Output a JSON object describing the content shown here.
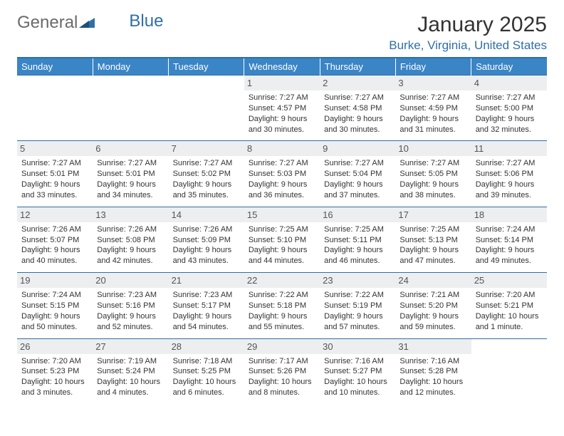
{
  "brand": {
    "part1": "General",
    "part2": "Blue"
  },
  "title": "January 2025",
  "location": "Burke, Virginia, United States",
  "colors": {
    "header_bg": "#3a85c6",
    "accent": "#2f6fa8",
    "daynum_bg": "#eceeef",
    "text": "#333333",
    "logo_gray": "#6a6a6a"
  },
  "weekdays": [
    "Sunday",
    "Monday",
    "Tuesday",
    "Wednesday",
    "Thursday",
    "Friday",
    "Saturday"
  ],
  "weeks": [
    [
      null,
      null,
      null,
      {
        "n": "1",
        "sr": "Sunrise: 7:27 AM",
        "ss": "Sunset: 4:57 PM",
        "d1": "Daylight: 9 hours",
        "d2": "and 30 minutes."
      },
      {
        "n": "2",
        "sr": "Sunrise: 7:27 AM",
        "ss": "Sunset: 4:58 PM",
        "d1": "Daylight: 9 hours",
        "d2": "and 30 minutes."
      },
      {
        "n": "3",
        "sr": "Sunrise: 7:27 AM",
        "ss": "Sunset: 4:59 PM",
        "d1": "Daylight: 9 hours",
        "d2": "and 31 minutes."
      },
      {
        "n": "4",
        "sr": "Sunrise: 7:27 AM",
        "ss": "Sunset: 5:00 PM",
        "d1": "Daylight: 9 hours",
        "d2": "and 32 minutes."
      }
    ],
    [
      {
        "n": "5",
        "sr": "Sunrise: 7:27 AM",
        "ss": "Sunset: 5:01 PM",
        "d1": "Daylight: 9 hours",
        "d2": "and 33 minutes."
      },
      {
        "n": "6",
        "sr": "Sunrise: 7:27 AM",
        "ss": "Sunset: 5:01 PM",
        "d1": "Daylight: 9 hours",
        "d2": "and 34 minutes."
      },
      {
        "n": "7",
        "sr": "Sunrise: 7:27 AM",
        "ss": "Sunset: 5:02 PM",
        "d1": "Daylight: 9 hours",
        "d2": "and 35 minutes."
      },
      {
        "n": "8",
        "sr": "Sunrise: 7:27 AM",
        "ss": "Sunset: 5:03 PM",
        "d1": "Daylight: 9 hours",
        "d2": "and 36 minutes."
      },
      {
        "n": "9",
        "sr": "Sunrise: 7:27 AM",
        "ss": "Sunset: 5:04 PM",
        "d1": "Daylight: 9 hours",
        "d2": "and 37 minutes."
      },
      {
        "n": "10",
        "sr": "Sunrise: 7:27 AM",
        "ss": "Sunset: 5:05 PM",
        "d1": "Daylight: 9 hours",
        "d2": "and 38 minutes."
      },
      {
        "n": "11",
        "sr": "Sunrise: 7:27 AM",
        "ss": "Sunset: 5:06 PM",
        "d1": "Daylight: 9 hours",
        "d2": "and 39 minutes."
      }
    ],
    [
      {
        "n": "12",
        "sr": "Sunrise: 7:26 AM",
        "ss": "Sunset: 5:07 PM",
        "d1": "Daylight: 9 hours",
        "d2": "and 40 minutes."
      },
      {
        "n": "13",
        "sr": "Sunrise: 7:26 AM",
        "ss": "Sunset: 5:08 PM",
        "d1": "Daylight: 9 hours",
        "d2": "and 42 minutes."
      },
      {
        "n": "14",
        "sr": "Sunrise: 7:26 AM",
        "ss": "Sunset: 5:09 PM",
        "d1": "Daylight: 9 hours",
        "d2": "and 43 minutes."
      },
      {
        "n": "15",
        "sr": "Sunrise: 7:25 AM",
        "ss": "Sunset: 5:10 PM",
        "d1": "Daylight: 9 hours",
        "d2": "and 44 minutes."
      },
      {
        "n": "16",
        "sr": "Sunrise: 7:25 AM",
        "ss": "Sunset: 5:11 PM",
        "d1": "Daylight: 9 hours",
        "d2": "and 46 minutes."
      },
      {
        "n": "17",
        "sr": "Sunrise: 7:25 AM",
        "ss": "Sunset: 5:13 PM",
        "d1": "Daylight: 9 hours",
        "d2": "and 47 minutes."
      },
      {
        "n": "18",
        "sr": "Sunrise: 7:24 AM",
        "ss": "Sunset: 5:14 PM",
        "d1": "Daylight: 9 hours",
        "d2": "and 49 minutes."
      }
    ],
    [
      {
        "n": "19",
        "sr": "Sunrise: 7:24 AM",
        "ss": "Sunset: 5:15 PM",
        "d1": "Daylight: 9 hours",
        "d2": "and 50 minutes."
      },
      {
        "n": "20",
        "sr": "Sunrise: 7:23 AM",
        "ss": "Sunset: 5:16 PM",
        "d1": "Daylight: 9 hours",
        "d2": "and 52 minutes."
      },
      {
        "n": "21",
        "sr": "Sunrise: 7:23 AM",
        "ss": "Sunset: 5:17 PM",
        "d1": "Daylight: 9 hours",
        "d2": "and 54 minutes."
      },
      {
        "n": "22",
        "sr": "Sunrise: 7:22 AM",
        "ss": "Sunset: 5:18 PM",
        "d1": "Daylight: 9 hours",
        "d2": "and 55 minutes."
      },
      {
        "n": "23",
        "sr": "Sunrise: 7:22 AM",
        "ss": "Sunset: 5:19 PM",
        "d1": "Daylight: 9 hours",
        "d2": "and 57 minutes."
      },
      {
        "n": "24",
        "sr": "Sunrise: 7:21 AM",
        "ss": "Sunset: 5:20 PM",
        "d1": "Daylight: 9 hours",
        "d2": "and 59 minutes."
      },
      {
        "n": "25",
        "sr": "Sunrise: 7:20 AM",
        "ss": "Sunset: 5:21 PM",
        "d1": "Daylight: 10 hours",
        "d2": "and 1 minute."
      }
    ],
    [
      {
        "n": "26",
        "sr": "Sunrise: 7:20 AM",
        "ss": "Sunset: 5:23 PM",
        "d1": "Daylight: 10 hours",
        "d2": "and 3 minutes."
      },
      {
        "n": "27",
        "sr": "Sunrise: 7:19 AM",
        "ss": "Sunset: 5:24 PM",
        "d1": "Daylight: 10 hours",
        "d2": "and 4 minutes."
      },
      {
        "n": "28",
        "sr": "Sunrise: 7:18 AM",
        "ss": "Sunset: 5:25 PM",
        "d1": "Daylight: 10 hours",
        "d2": "and 6 minutes."
      },
      {
        "n": "29",
        "sr": "Sunrise: 7:17 AM",
        "ss": "Sunset: 5:26 PM",
        "d1": "Daylight: 10 hours",
        "d2": "and 8 minutes."
      },
      {
        "n": "30",
        "sr": "Sunrise: 7:16 AM",
        "ss": "Sunset: 5:27 PM",
        "d1": "Daylight: 10 hours",
        "d2": "and 10 minutes."
      },
      {
        "n": "31",
        "sr": "Sunrise: 7:16 AM",
        "ss": "Sunset: 5:28 PM",
        "d1": "Daylight: 10 hours",
        "d2": "and 12 minutes."
      },
      null
    ]
  ]
}
